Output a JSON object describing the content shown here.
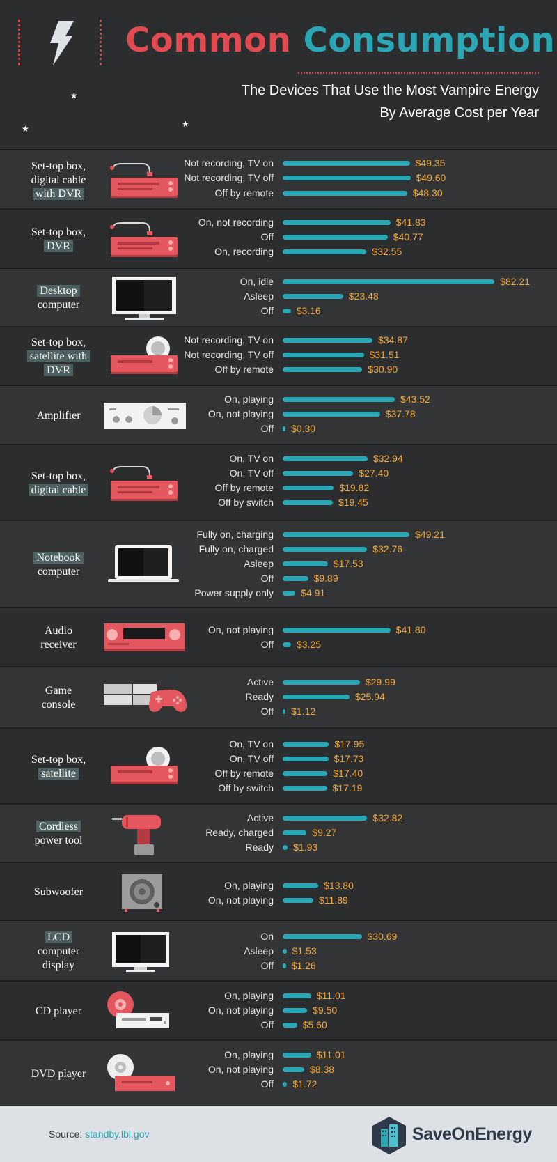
{
  "header": {
    "title_part1": "Common",
    "title_part2": "Consumption",
    "subtitle_line1": "The Devices That Use the Most Vampire Energy",
    "subtitle_line2": "By Average Cost per Year"
  },
  "footer": {
    "source_label": "Source:",
    "source_url": "standby.lbl.gov",
    "brand": "SaveOnEnergy"
  },
  "colors": {
    "accent_red": "#e24a52",
    "accent_teal": "#2aa6b4",
    "value_orange": "#f2a93b"
  },
  "chart_data": {
    "type": "bar",
    "orientation": "horizontal",
    "grid": false,
    "devices": [
      {
        "name_lines": [
          "Set-top box,",
          "digital cable",
          "with DVR"
        ],
        "highlight": [
          2
        ],
        "icon": "settop-box-icon",
        "modes": [
          {
            "label": "Not recording, TV on",
            "value": 49.35,
            "display": "$49.35"
          },
          {
            "label": "Not recording, TV off",
            "value": 49.6,
            "display": "$49.60"
          },
          {
            "label": "Off by remote",
            "value": 48.3,
            "display": "$48.30"
          }
        ]
      },
      {
        "name_lines": [
          "Set-top box,",
          "DVR"
        ],
        "highlight": [
          1
        ],
        "icon": "settop-box-icon",
        "modes": [
          {
            "label": "On, not recording",
            "value": 41.83,
            "display": "$41.83"
          },
          {
            "label": "Off",
            "value": 40.77,
            "display": "$40.77"
          },
          {
            "label": "On, recording",
            "value": 32.55,
            "display": "$32.55"
          }
        ]
      },
      {
        "name_lines": [
          "Desktop",
          "computer"
        ],
        "highlight": [
          0
        ],
        "icon": "desktop-monitor-icon",
        "modes": [
          {
            "label": "On, idle",
            "value": 82.21,
            "display": "$82.21"
          },
          {
            "label": "Asleep",
            "value": 23.48,
            "display": "$23.48"
          },
          {
            "label": "Off",
            "value": 3.16,
            "display": "$3.16"
          }
        ]
      },
      {
        "name_lines": [
          "Set-top box,",
          "satellite with",
          "DVR"
        ],
        "highlight": [
          1,
          2
        ],
        "icon": "satellite-box-icon",
        "modes": [
          {
            "label": "Not recording, TV on",
            "value": 34.87,
            "display": "$34.87"
          },
          {
            "label": "Not recording, TV off",
            "value": 31.51,
            "display": "$31.51"
          },
          {
            "label": "Off by remote",
            "value": 30.9,
            "display": "$30.90"
          }
        ]
      },
      {
        "name_lines": [
          "Amplifier"
        ],
        "highlight": [],
        "icon": "amplifier-icon",
        "modes": [
          {
            "label": "On, playing",
            "value": 43.52,
            "display": "$43.52"
          },
          {
            "label": "On, not playing",
            "value": 37.78,
            "display": "$37.78"
          },
          {
            "label": "Off",
            "value": 0.3,
            "display": "$0.30"
          }
        ]
      },
      {
        "name_lines": [
          "Set-top box,",
          "digital cable"
        ],
        "highlight": [
          1
        ],
        "icon": "settop-box-icon",
        "modes": [
          {
            "label": "On, TV on",
            "value": 32.94,
            "display": "$32.94"
          },
          {
            "label": "On, TV off",
            "value": 27.4,
            "display": "$27.40"
          },
          {
            "label": "Off by remote",
            "value": 19.82,
            "display": "$19.82"
          },
          {
            "label": "Off by switch",
            "value": 19.45,
            "display": "$19.45"
          }
        ]
      },
      {
        "name_lines": [
          "Notebook",
          "computer"
        ],
        "highlight": [
          0
        ],
        "icon": "laptop-icon",
        "modes": [
          {
            "label": "Fully on, charging",
            "value": 49.21,
            "display": "$49.21"
          },
          {
            "label": "Fully on, charged",
            "value": 32.76,
            "display": "$32.76"
          },
          {
            "label": "Asleep",
            "value": 17.53,
            "display": "$17.53"
          },
          {
            "label": "Off",
            "value": 9.89,
            "display": "$9.89"
          },
          {
            "label": "Power supply only",
            "value": 4.91,
            "display": "$4.91"
          }
        ]
      },
      {
        "name_lines": [
          "Audio",
          "receiver"
        ],
        "highlight": [],
        "icon": "audio-receiver-icon",
        "modes": [
          {
            "label": "On, not playing",
            "value": 41.8,
            "display": "$41.80"
          },
          {
            "label": "Off",
            "value": 3.25,
            "display": "$3.25"
          }
        ]
      },
      {
        "name_lines": [
          "Game",
          "console"
        ],
        "highlight": [],
        "icon": "game-console-icon",
        "modes": [
          {
            "label": "Active",
            "value": 29.99,
            "display": "$29.99"
          },
          {
            "label": "Ready",
            "value": 25.94,
            "display": "$25.94"
          },
          {
            "label": "Off",
            "value": 1.12,
            "display": "$1.12"
          }
        ]
      },
      {
        "name_lines": [
          "Set-top box,",
          "satellite"
        ],
        "highlight": [
          1
        ],
        "icon": "satellite-box-icon",
        "modes": [
          {
            "label": "On, TV on",
            "value": 17.95,
            "display": "$17.95"
          },
          {
            "label": "On, TV off",
            "value": 17.73,
            "display": "$17.73"
          },
          {
            "label": "Off by remote",
            "value": 17.4,
            "display": "$17.40"
          },
          {
            "label": "Off by switch",
            "value": 17.19,
            "display": "$17.19"
          }
        ]
      },
      {
        "name_lines": [
          "Cordless",
          "power tool"
        ],
        "highlight": [
          0
        ],
        "icon": "power-drill-icon",
        "modes": [
          {
            "label": "Active",
            "value": 32.82,
            "display": "$32.82"
          },
          {
            "label": "Ready, charged",
            "value": 9.27,
            "display": "$9.27"
          },
          {
            "label": "Ready",
            "value": 1.93,
            "display": "$1.93"
          }
        ]
      },
      {
        "name_lines": [
          "Subwoofer"
        ],
        "highlight": [],
        "icon": "subwoofer-icon",
        "modes": [
          {
            "label": "On, playing",
            "value": 13.8,
            "display": "$13.80"
          },
          {
            "label": "On, not playing",
            "value": 11.89,
            "display": "$11.89"
          }
        ]
      },
      {
        "name_lines": [
          "LCD",
          "computer",
          "display"
        ],
        "highlight": [
          0
        ],
        "icon": "lcd-monitor-icon",
        "modes": [
          {
            "label": "On",
            "value": 30.69,
            "display": "$30.69"
          },
          {
            "label": "Asleep",
            "value": 1.53,
            "display": "$1.53"
          },
          {
            "label": "Off",
            "value": 1.26,
            "display": "$1.26"
          }
        ]
      },
      {
        "name_lines": [
          "CD player"
        ],
        "highlight": [],
        "icon": "cd-player-icon",
        "modes": [
          {
            "label": "On, playing",
            "value": 11.01,
            "display": "$11.01"
          },
          {
            "label": "On, not playing",
            "value": 9.5,
            "display": "$9.50"
          },
          {
            "label": "Off",
            "value": 5.6,
            "display": "$5.60"
          }
        ]
      },
      {
        "name_lines": [
          "DVD player"
        ],
        "highlight": [],
        "icon": "dvd-player-icon",
        "modes": [
          {
            "label": "On, playing",
            "value": 11.01,
            "display": "$11.01"
          },
          {
            "label": "On, not playing",
            "value": 8.38,
            "display": "$8.38"
          },
          {
            "label": "Off",
            "value": 1.72,
            "display": "$1.72"
          }
        ]
      }
    ]
  }
}
